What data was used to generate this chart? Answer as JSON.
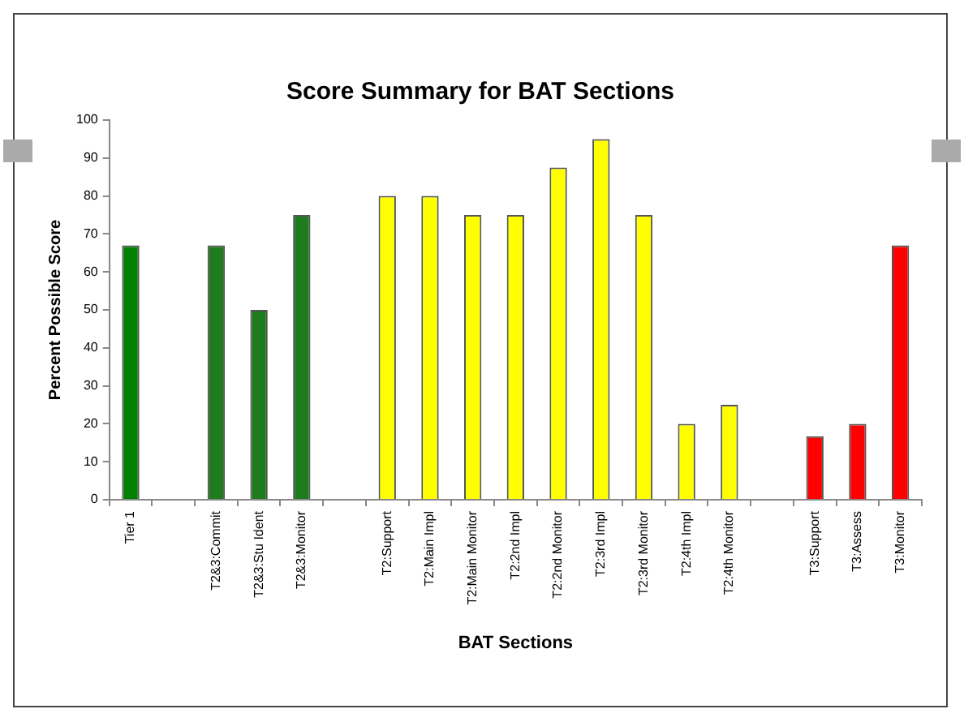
{
  "chart_data": {
    "type": "bar",
    "title": "Score Summary for BAT Sections",
    "xlabel": "BAT Sections",
    "ylabel": "Percent Possible Score",
    "categories": [
      "Tier 1",
      null,
      "T2&3:Commit",
      "T2&3:Stu Ident",
      "T2&3:Monitor",
      null,
      "T2:Support",
      "T2:Main Impl",
      "T2:Main Monitor",
      "T2:2nd Impl",
      "T2:2nd Monitor",
      "T2:3rd Impl",
      "T2:3rd Monitor",
      "T2:4th Impl",
      "T2:4th Monitor",
      null,
      "T3:Support",
      "T3:Assess",
      "T3:Monitor"
    ],
    "values": [
      67,
      null,
      67,
      50,
      75,
      null,
      80,
      80,
      75,
      75,
      87.5,
      95,
      75,
      20,
      25,
      null,
      16.7,
      20,
      67
    ],
    "colors": [
      "#008000",
      "#008000",
      "#1e7b1e",
      "#1e7b1e",
      "#1e7b1e",
      "#ffff00",
      "#ffff00",
      "#ffff00",
      "#ffff00",
      "#ffff00",
      "#ffff00",
      "#ffff00",
      "#ffff00",
      "#ffff00",
      "#ffff00",
      "#ff0000",
      "#ff0000",
      "#ff0000",
      "#ff0000"
    ],
    "ylim": [
      0,
      100
    ],
    "yticks": [
      0,
      10,
      20,
      30,
      40,
      50,
      60,
      70,
      80,
      90,
      100
    ],
    "grid": false,
    "legend": false
  }
}
